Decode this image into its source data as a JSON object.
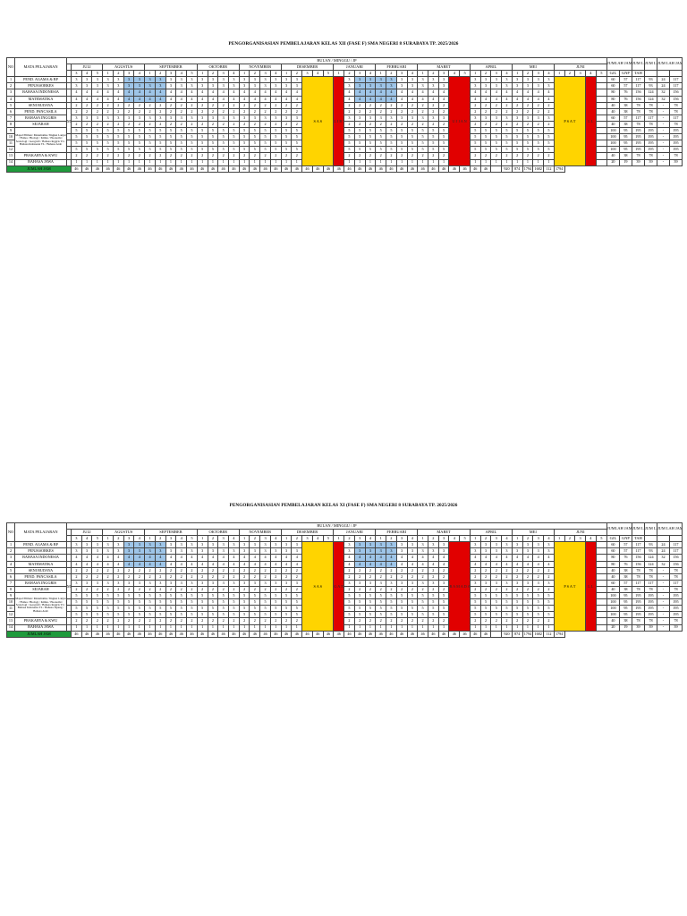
{
  "tables": [
    {
      "title": "PENGORGANISASIAN PEMBELAJARAN KELAS XII (FASE F) SMA NEGERI 8 SURABAYA TP. 2025/2026",
      "header": {
        "no": "NO",
        "mapel": "MATA PELAJARAN",
        "bulan": "BULAN / MINGGU / JP",
        "months": [
          "JULI",
          "AGUSTUS",
          "SEPTEMBER",
          "OKTOBER",
          "NOVEMBER",
          "DESEMBER",
          "JANUARI",
          "FEBRUARI",
          "MARET",
          "APRIL",
          "MEI",
          "JUNI"
        ],
        "summary": [
          "JUMLAH JAM",
          "JUM LAH JAM / GJL",
          "JUM LAH JAM INTR KO",
          "JUM LAH JAM"
        ],
        "summary_short": [
          "JUMLAH",
          "JAM",
          "GJL",
          "GNP",
          "JUM LAH",
          "JAM /",
          "INTR",
          "KO",
          "JUM LAH",
          "JAM",
          "TAH",
          "JUM"
        ]
      },
      "vertical": {
        "mpls": "MPLS",
        "sas": "SAS",
        "libur_ganjil": "LIBUR",
        "ganjil": "GANJIL",
        "psts": "PSTS",
        "ujian": "UJIAN",
        "pat": "PSAT",
        "lain": "LL"
      },
      "rows": [
        {
          "no": "1",
          "name": "PEND. AGAMA & BP",
          "v": "3",
          "s": [
            "60",
            "57",
            "117",
            "93",
            "24",
            "117"
          ]
        },
        {
          "no": "2",
          "name": "PENJASORKES",
          "v": "3",
          "s": [
            "60",
            "57",
            "117",
            "93",
            "24",
            "117"
          ]
        },
        {
          "no": "3",
          "name": "BAHASA INDONESIA",
          "v": "4",
          "s": [
            "80",
            "76",
            "156",
            "124",
            "32",
            "156"
          ]
        },
        {
          "no": "4",
          "name": "MATEMATIKA",
          "v": "4",
          "s": [
            "80",
            "76",
            "156",
            "124",
            "32",
            "156"
          ]
        },
        {
          "no": "5",
          "name": "SENI BUDAYA",
          "v": "2",
          "s": [
            "40",
            "38",
            "78",
            "78",
            "-",
            "78"
          ]
        },
        {
          "no": "6",
          "name": "PEND. PANCASILA",
          "v": "2",
          "s": [
            "40",
            "38",
            "78",
            "78",
            "-",
            "78"
          ]
        },
        {
          "no": "7",
          "name": "BAHASA INGGRIS",
          "v": "3",
          "s": [
            "60",
            "57",
            "117",
            "117",
            "-",
            "117"
          ]
        },
        {
          "no": "8",
          "name": "SEJARAH",
          "v": "2",
          "s": [
            "40",
            "38",
            "78",
            "78",
            "-",
            "78"
          ]
        },
        {
          "no": "9",
          "name": "Mapel Pilihan: Matematika Tingkat Lanjut / Fisika / Biologi / Kimia / Ekonomi / Sosiologi / Geografi / Bahasa Inggris TL / Bahasa Indonesia TL / Bahasa Arab",
          "v": "5",
          "s": [
            "100",
            "95",
            "195",
            "195",
            "-",
            "195"
          ]
        },
        {
          "no": "10",
          "name": "",
          "v": "5",
          "s": [
            "100",
            "95",
            "195",
            "195",
            "-",
            "195"
          ]
        },
        {
          "no": "11",
          "name": "",
          "v": "5",
          "s": [
            "100",
            "95",
            "195",
            "195",
            "-",
            "195"
          ]
        },
        {
          "no": "12",
          "name": "",
          "v": "5",
          "s": [
            "100",
            "95",
            "195",
            "195",
            "-",
            "195"
          ]
        },
        {
          "no": "13",
          "name": "PRAKARYA & KWU",
          "v": "2",
          "s": [
            "40",
            "38",
            "78",
            "78",
            "-",
            "78"
          ]
        },
        {
          "no": "14",
          "name": "BAHASA JAWA",
          "v": "1",
          "s": [
            "20",
            "19",
            "39",
            "39",
            "-",
            "39"
          ]
        }
      ],
      "total": {
        "label": "JUMLAH JAM",
        "v": "46",
        "s": [
          "920",
          "874",
          "1794",
          "1682",
          "112",
          "1794"
        ]
      }
    },
    {
      "title": "PENGORGANISASIAN PEMBELAJARAN KELAS XI (FASE F) SMA NEGERI 8 SURABAYA TP. 2025/2026",
      "header": {
        "no": "NO",
        "mapel": "MATA PELAJARAN",
        "bulan": "BULAN / MINGGU / JP",
        "months": [
          "JULI",
          "AGUSTUS",
          "SEPTEMBER",
          "OKTOBER",
          "NOVEMBER",
          "DESEMBER",
          "JANUARI",
          "FEBRUARI",
          "MARET",
          "APRIL",
          "MEI",
          "JUNI"
        ],
        "summary_short": [
          "JUMLAH",
          "JAM",
          "GJL",
          "GNP",
          "JUM LAH",
          "JAM /",
          "INTR",
          "KO",
          "JUM LAH",
          "JAM",
          "TAH",
          "JUM"
        ]
      },
      "vertical": {
        "mpls": "MPLS",
        "sas": "SAS",
        "ganjil": "GANJIL",
        "ramadan": "RAMADAN",
        "psat": "PSAT",
        "ll": "LL"
      },
      "rows": [
        {
          "no": "1",
          "name": "PEND. AGAMA & BP",
          "v": "3",
          "s": [
            "60",
            "57",
            "117",
            "93",
            "24",
            "117"
          ]
        },
        {
          "no": "2",
          "name": "PENJASORKES",
          "v": "3",
          "s": [
            "60",
            "57",
            "117",
            "93",
            "24",
            "117"
          ]
        },
        {
          "no": "3",
          "name": "BAHASA INDONESIA",
          "v": "4",
          "s": [
            "80",
            "76",
            "156",
            "124",
            "32",
            "156"
          ]
        },
        {
          "no": "4",
          "name": "MATEMATIKA",
          "v": "4",
          "s": [
            "80",
            "76",
            "156",
            "124",
            "32",
            "156"
          ]
        },
        {
          "no": "5",
          "name": "SENI BUDAYA",
          "v": "2",
          "s": [
            "40",
            "38",
            "78",
            "78",
            "-",
            "78"
          ]
        },
        {
          "no": "6",
          "name": "PEND. PANCASILA",
          "v": "2",
          "s": [
            "40",
            "38",
            "78",
            "78",
            "-",
            "78"
          ]
        },
        {
          "no": "7",
          "name": "BAHASA INGGRIS",
          "v": "3",
          "s": [
            "60",
            "57",
            "117",
            "117",
            "-",
            "117"
          ]
        },
        {
          "no": "8",
          "name": "SEJARAH",
          "v": "2",
          "s": [
            "40",
            "38",
            "78",
            "78",
            "-",
            "78"
          ]
        },
        {
          "no": "9",
          "name": "Mapel Pilihan: Matematika Tingkat Lanjut / Fisika / Biologi / Kimia / Ekonomi / Sosiologi / Geografi / Bahasa Inggris TL / Bahasa Indonesia TL / Bahasa Jepang / Bahasa Arab",
          "v": "5",
          "s": [
            "100",
            "95",
            "195",
            "195",
            "-",
            "195"
          ]
        },
        {
          "no": "10",
          "name": "",
          "v": "5",
          "s": [
            "100",
            "95",
            "195",
            "195",
            "-",
            "195"
          ]
        },
        {
          "no": "11",
          "name": "",
          "v": "5",
          "s": [
            "100",
            "95",
            "195",
            "195",
            "-",
            "195"
          ]
        },
        {
          "no": "12",
          "name": "",
          "v": "5",
          "s": [
            "100",
            "95",
            "195",
            "195",
            "-",
            "195"
          ]
        },
        {
          "no": "13",
          "name": "PRAKARYA & KWU",
          "v": "2",
          "s": [
            "40",
            "38",
            "78",
            "78",
            "-",
            "78"
          ]
        },
        {
          "no": "14",
          "name": "BAHASA JAWA",
          "v": "1",
          "s": [
            "20",
            "19",
            "39",
            "39",
            "-",
            "39"
          ]
        }
      ],
      "total": {
        "label": "JUMLAH JAM",
        "v": "46",
        "s": [
          "920",
          "874",
          "1794",
          "1682",
          "112",
          "1794"
        ]
      }
    }
  ],
  "colors": {
    "blue": "#9ec5e8",
    "yellow": "#ffd400",
    "red": "#e10000",
    "green": "#1f9a3c"
  }
}
